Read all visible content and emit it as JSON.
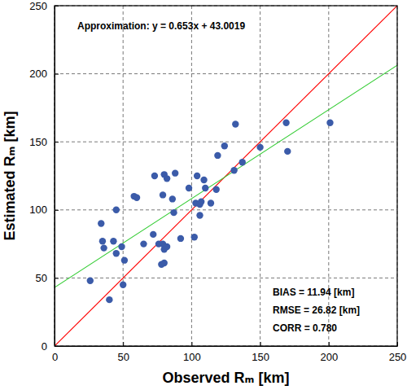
{
  "chart_data": {
    "type": "scatter",
    "xlabel": "Observed Rₘ [km]",
    "ylabel": "Estimated Rₘ [km]",
    "x": [
      26,
      34,
      35,
      36,
      40,
      43,
      45,
      45,
      49,
      50,
      51,
      58,
      60,
      65,
      72,
      73,
      76,
      78,
      79,
      79,
      80,
      80,
      80,
      82,
      82,
      86,
      87,
      88,
      92,
      98,
      102,
      103,
      104,
      106,
      106,
      107,
      109,
      110,
      114,
      118,
      119,
      124,
      131,
      132,
      137,
      150,
      169,
      170,
      201
    ],
    "values": [
      48,
      90,
      77,
      72,
      34,
      77,
      100,
      68,
      73,
      45,
      63,
      110,
      109,
      75,
      82,
      125,
      75,
      60,
      75,
      111,
      61,
      126,
      71,
      123,
      73,
      108,
      98,
      127,
      79,
      116,
      80,
      105,
      125,
      104,
      96,
      106,
      122,
      116,
      105,
      115,
      140,
      147,
      129,
      163,
      135,
      146,
      164,
      143,
      164
    ],
    "color": "#3b5ba9",
    "marker": "circle",
    "xlim": [
      0,
      250
    ],
    "ylim": [
      0,
      250
    ],
    "xticks": [
      0,
      50,
      100,
      150,
      200,
      250
    ],
    "yticks": [
      0,
      50,
      100,
      150,
      200,
      250
    ],
    "grid": true,
    "reference_line": {
      "slope": 1,
      "intercept": 0,
      "color": "#ff0000"
    },
    "fit": {
      "label": "Approximation: y = 0.653x + 43.0019",
      "slope": 0.653,
      "intercept": 43.0019,
      "color": "#33cc33"
    },
    "annotations": [
      "BIAS = 11.94 [km]",
      "RMSE = 26.82 [km]",
      "CORR = 0.780"
    ]
  }
}
